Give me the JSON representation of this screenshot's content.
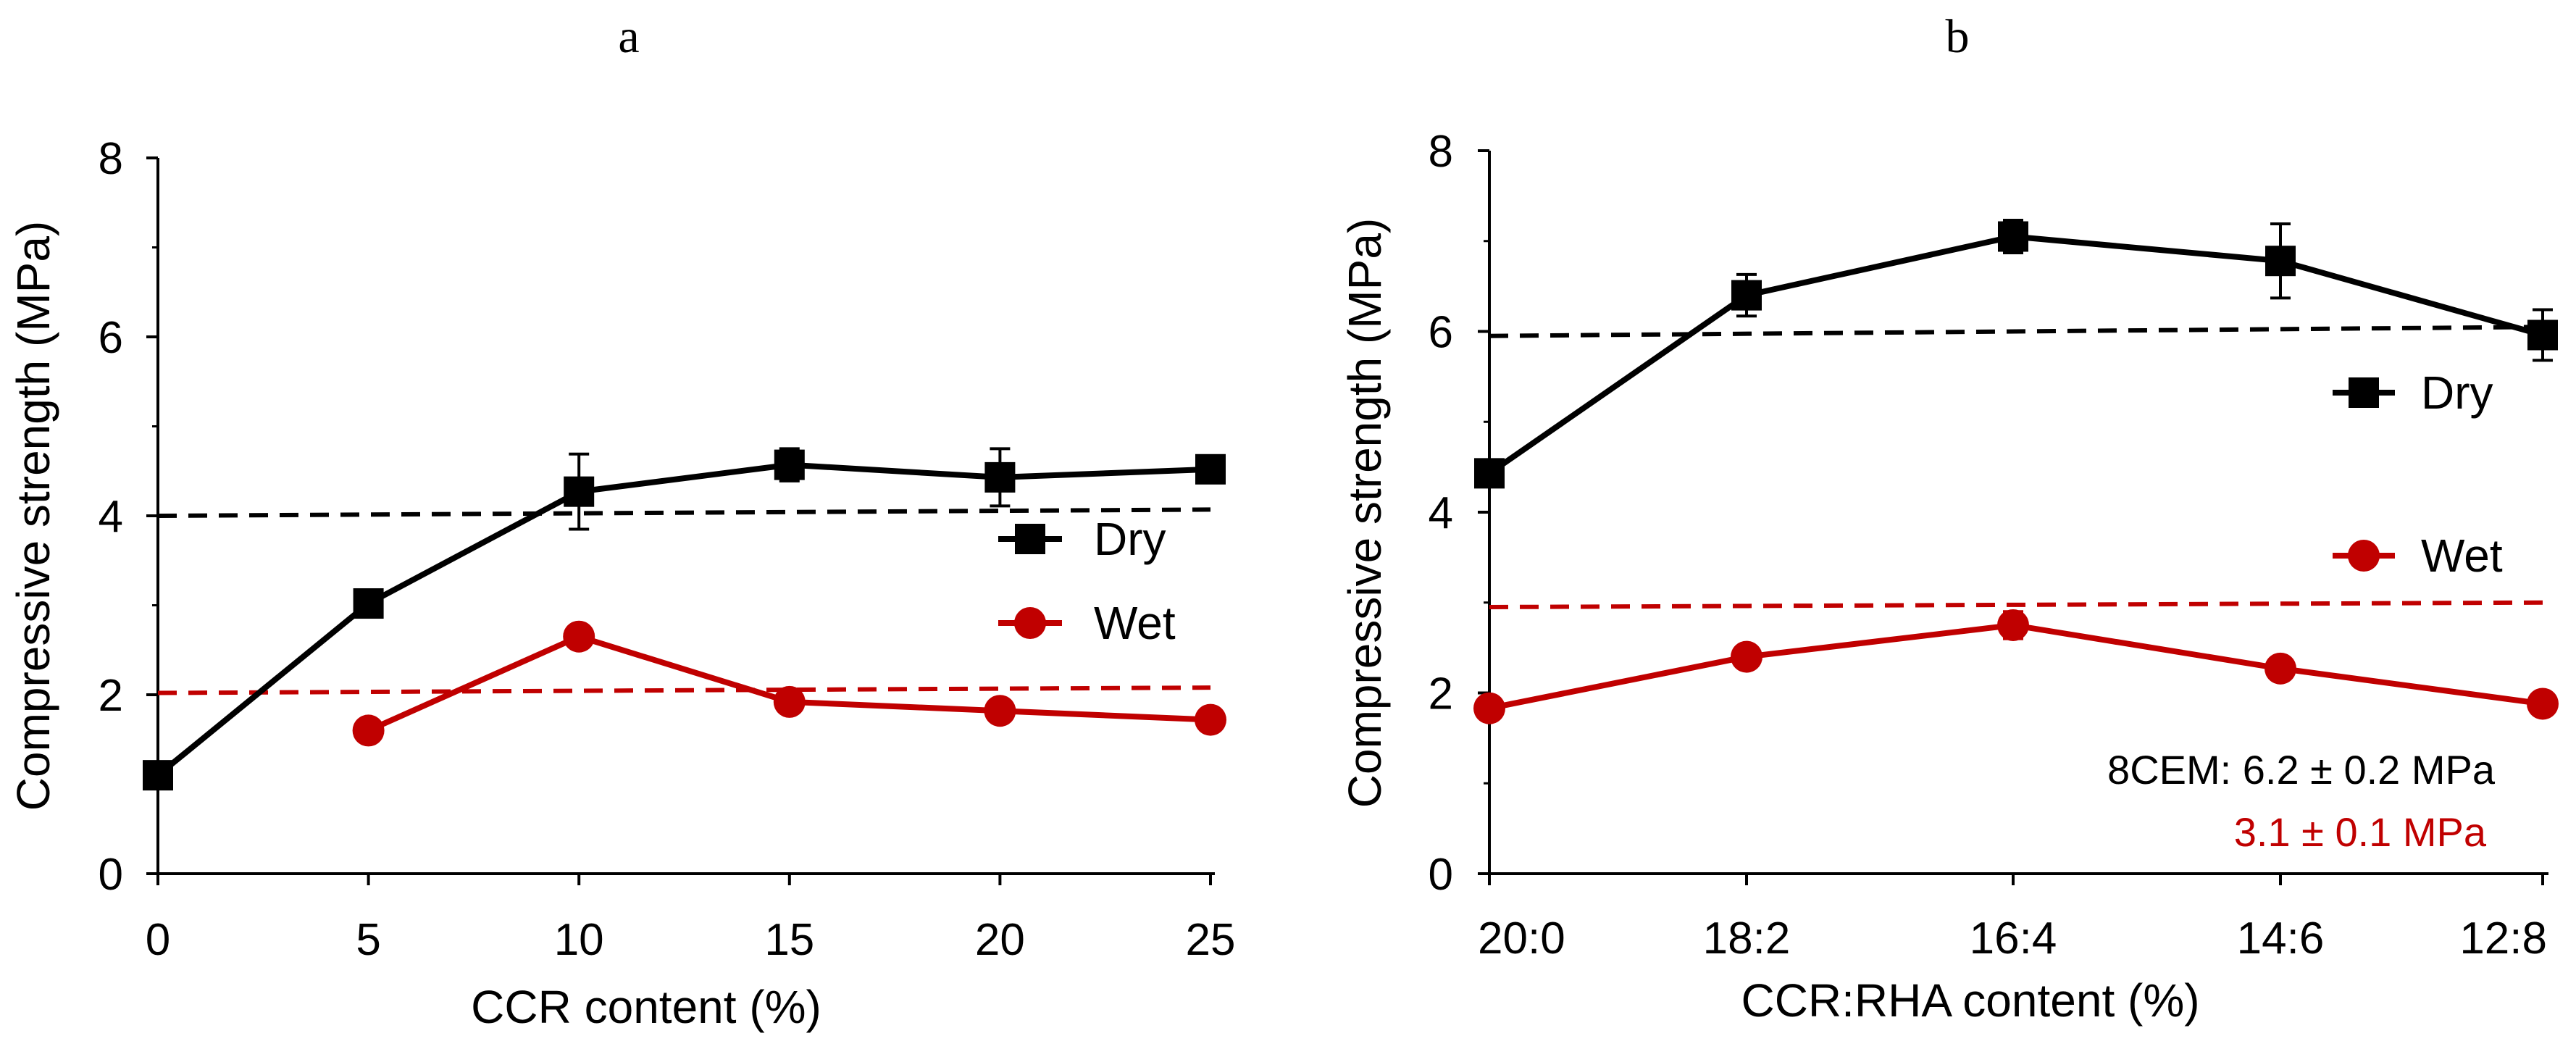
{
  "chart_data": [
    {
      "type": "line",
      "panel_label": "a",
      "xlabel": "CCR content (%)",
      "ylabel": "Compressive strength (MPa)",
      "x_ticks": [
        "0",
        "5",
        "10",
        "15",
        "20",
        "25"
      ],
      "y_ticks": [
        "0",
        "2",
        "4",
        "6",
        "8"
      ],
      "xlim": [
        0,
        25
      ],
      "ylim": [
        0,
        8
      ],
      "x": [
        0,
        5,
        10,
        15,
        20,
        25
      ],
      "series": [
        {
          "name": "Dry",
          "color": "#000000",
          "marker": "square",
          "x": [
            0,
            5,
            10,
            15,
            20,
            25
          ],
          "values": [
            1.1,
            3.02,
            4.27,
            4.57,
            4.43,
            4.52
          ],
          "errors": [
            0,
            0,
            0.42,
            0.18,
            0.32,
            0
          ]
        },
        {
          "name": "Wet",
          "color": "#c00000",
          "marker": "circle",
          "x": [
            5,
            10,
            15,
            20,
            25
          ],
          "values": [
            1.6,
            2.65,
            1.92,
            1.82,
            1.72
          ],
          "errors": [
            0,
            0.05,
            0.05,
            0.05,
            0.05
          ]
        }
      ],
      "reference_lines": [
        {
          "name": "Dry reference",
          "color": "#000000",
          "values": [
            4.0,
            4.07
          ]
        },
        {
          "name": "Wet reference",
          "color": "#c00000",
          "values": [
            2.02,
            2.08
          ]
        }
      ],
      "legend": {
        "position": "middle-right",
        "entries": [
          "Dry",
          "Wet"
        ]
      }
    },
    {
      "type": "line",
      "panel_label": "b",
      "xlabel": "CCR:RHA content (%)",
      "ylabel": "Compressive strength (MPa)",
      "categories": [
        "20:0",
        "18:2",
        "16:4",
        "14:6",
        "12:8"
      ],
      "y_ticks": [
        "0",
        "2",
        "4",
        "6",
        "8"
      ],
      "ylim": [
        0,
        8
      ],
      "series": [
        {
          "name": "Dry",
          "color": "#000000",
          "marker": "square",
          "values": [
            4.43,
            6.4,
            7.05,
            6.78,
            5.96
          ],
          "errors": [
            0,
            0.23,
            0.18,
            0.41,
            0.28
          ]
        },
        {
          "name": "Wet",
          "color": "#c00000",
          "marker": "circle",
          "values": [
            1.83,
            2.4,
            2.75,
            2.27,
            1.88
          ],
          "errors": [
            0,
            0,
            0.15,
            0,
            0.1
          ]
        }
      ],
      "reference_lines": [
        {
          "name": "Dry reference",
          "color": "#000000",
          "values": [
            5.95,
            6.05
          ]
        },
        {
          "name": "Wet reference",
          "color": "#c00000",
          "values": [
            2.95,
            3.0
          ]
        }
      ],
      "legend": {
        "position": "right",
        "entries": [
          "Dry",
          "Wet"
        ]
      },
      "annotations": [
        {
          "text": "8CEM: 6.2 ± 0.2 MPa",
          "color": "#000000"
        },
        {
          "text": "3.1 ± 0.1 MPa",
          "color": "#c00000"
        }
      ]
    }
  ]
}
